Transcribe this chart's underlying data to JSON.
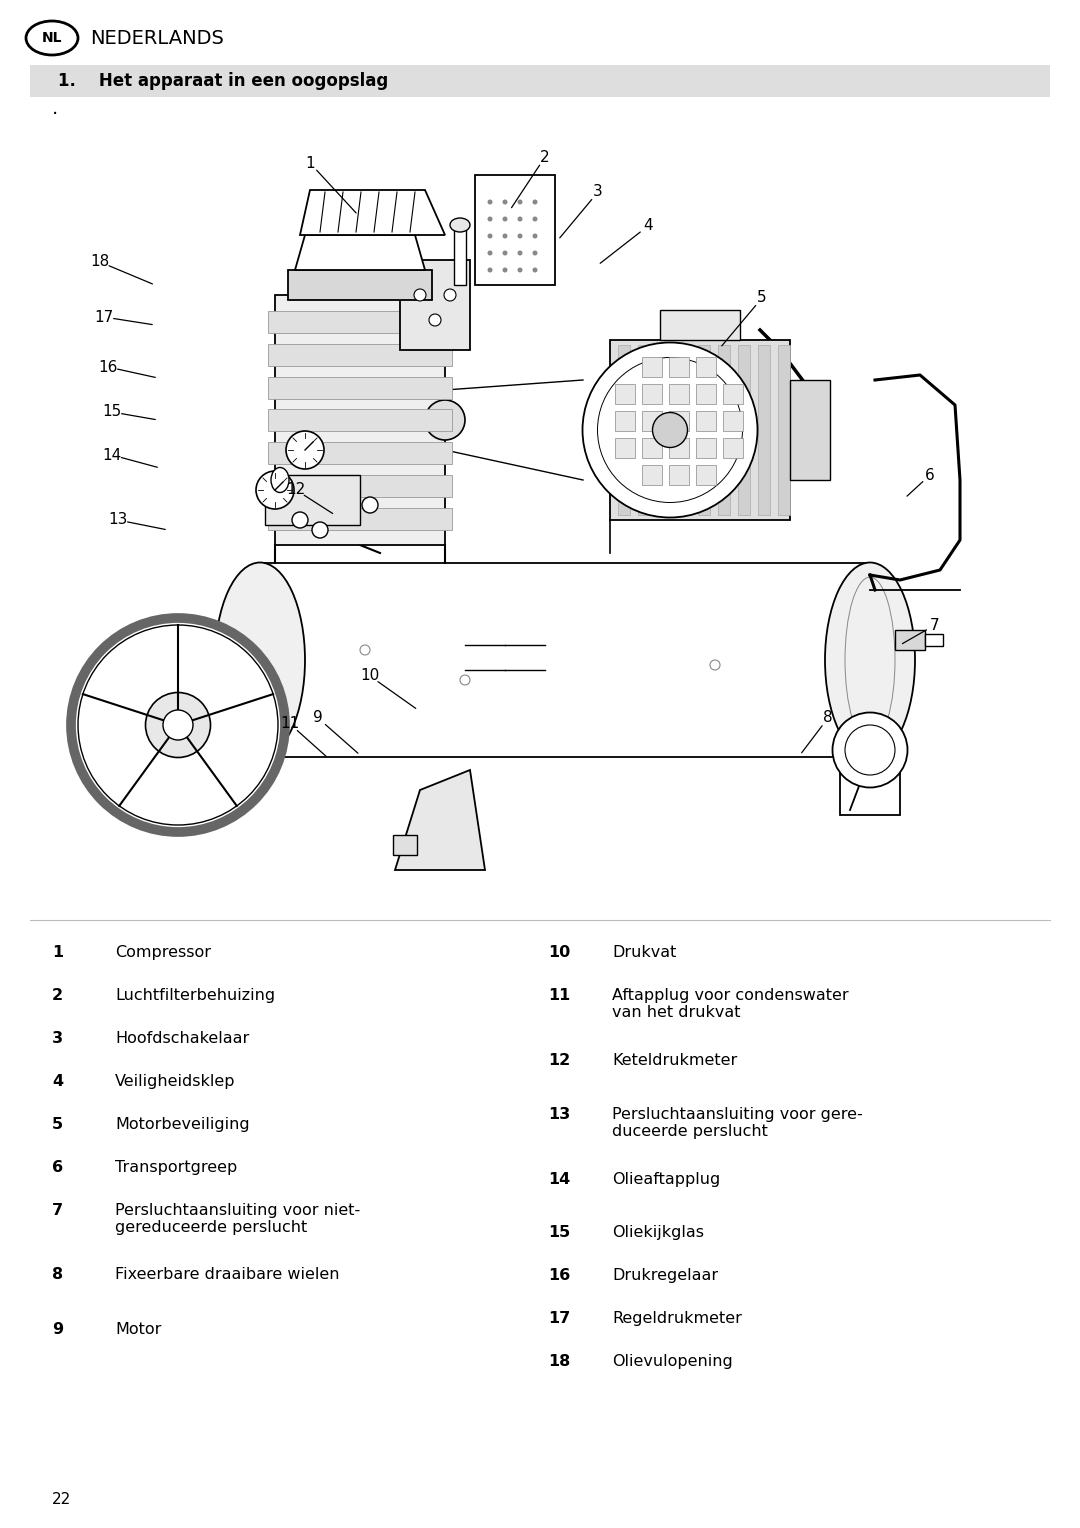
{
  "bg_color": "#ffffff",
  "page_number": "22",
  "header_lang_code": "NL",
  "header_lang_text": "NEDERLANDS",
  "section_number": "1.",
  "section_title": "Het apparaat in een oogopslag",
  "section_bg": "#dedede",
  "left_items": [
    {
      "num": "1",
      "text": "Compressor"
    },
    {
      "num": "2",
      "text": "Luchtfilterbehuizing"
    },
    {
      "num": "3",
      "text": "Hoofdschakelaar"
    },
    {
      "num": "4",
      "text": "Veiligheidsklep"
    },
    {
      "num": "5",
      "text": "Motorbeveiliging"
    },
    {
      "num": "6",
      "text": "Transportgreep"
    },
    {
      "num": "7",
      "text": "Persluchtaansluiting voor niet-\ngereduceerde perslucht"
    },
    {
      "num": "8",
      "text": "Fixeerbare draaibare wielen"
    },
    {
      "num": "9",
      "text": "Motor"
    }
  ],
  "right_items": [
    {
      "num": "10",
      "text": "Drukvat"
    },
    {
      "num": "11",
      "text": "Aftapplug voor condenswater\nvan het drukvat"
    },
    {
      "num": "12",
      "text": "Keteldrukmeter"
    },
    {
      "num": "13",
      "text": "Persluchtaansluiting voor gere-\nduceerde perslucht"
    },
    {
      "num": "14",
      "text": "Olieaftapplug"
    },
    {
      "num": "15",
      "text": "Oliekijkglas"
    },
    {
      "num": "16",
      "text": "Drukregelaar"
    },
    {
      "num": "17",
      "text": "Regeldrukmeter"
    },
    {
      "num": "18",
      "text": "Olievulopening"
    }
  ]
}
